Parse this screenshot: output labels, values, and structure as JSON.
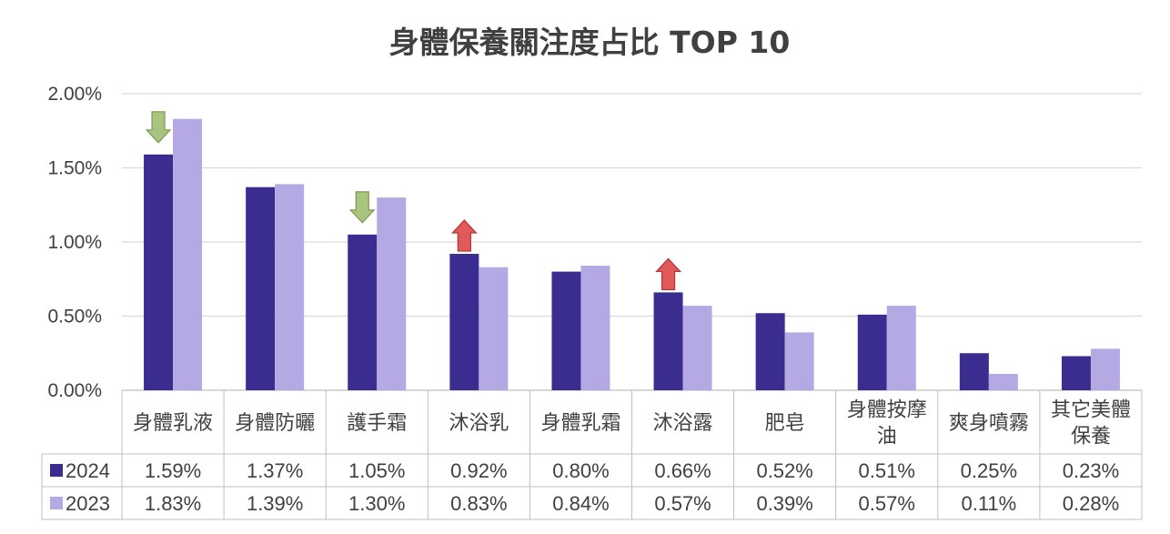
{
  "chart_data": {
    "type": "bar",
    "title": "身體保養關注度占比 TOP 10",
    "categories": [
      [
        "身體乳液"
      ],
      [
        "身體防曬"
      ],
      [
        "護手霜"
      ],
      [
        "沐浴乳"
      ],
      [
        "身體乳霜"
      ],
      [
        "沐浴露"
      ],
      [
        "肥皂"
      ],
      [
        "身體按摩",
        "油"
      ],
      [
        "爽身噴霧"
      ],
      [
        "其它美體",
        "保養"
      ]
    ],
    "series": [
      {
        "name": "2024",
        "color": "#3b2d8f",
        "values": [
          1.59,
          1.37,
          1.05,
          0.92,
          0.8,
          0.66,
          0.52,
          0.51,
          0.25,
          0.23
        ],
        "labels": [
          "1.59%",
          "1.37%",
          "1.05%",
          "0.92%",
          "0.80%",
          "0.66%",
          "0.52%",
          "0.51%",
          "0.25%",
          "0.23%"
        ]
      },
      {
        "name": "2023",
        "color": "#b4a9e3",
        "values": [
          1.83,
          1.39,
          1.3,
          0.83,
          0.84,
          0.57,
          0.39,
          0.57,
          0.11,
          0.28
        ],
        "labels": [
          "1.83%",
          "1.39%",
          "1.30%",
          "0.83%",
          "0.84%",
          "0.57%",
          "0.39%",
          "0.57%",
          "0.11%",
          "0.28%"
        ]
      }
    ],
    "ylim": [
      0,
      2.0
    ],
    "yticks": [
      0,
      0.5,
      1.0,
      1.5,
      2.0
    ],
    "ytick_labels": [
      "0.00%",
      "0.50%",
      "1.00%",
      "1.50%",
      "2.00%"
    ],
    "grid": true,
    "legend": "data-table",
    "annotations": [
      {
        "category_index": 0,
        "direction": "down",
        "color": "#a9c47f"
      },
      {
        "category_index": 2,
        "direction": "down",
        "color": "#a9c47f"
      },
      {
        "category_index": 3,
        "direction": "up",
        "color": "#e05a5a"
      },
      {
        "category_index": 5,
        "direction": "up",
        "color": "#e05a5a"
      }
    ]
  }
}
